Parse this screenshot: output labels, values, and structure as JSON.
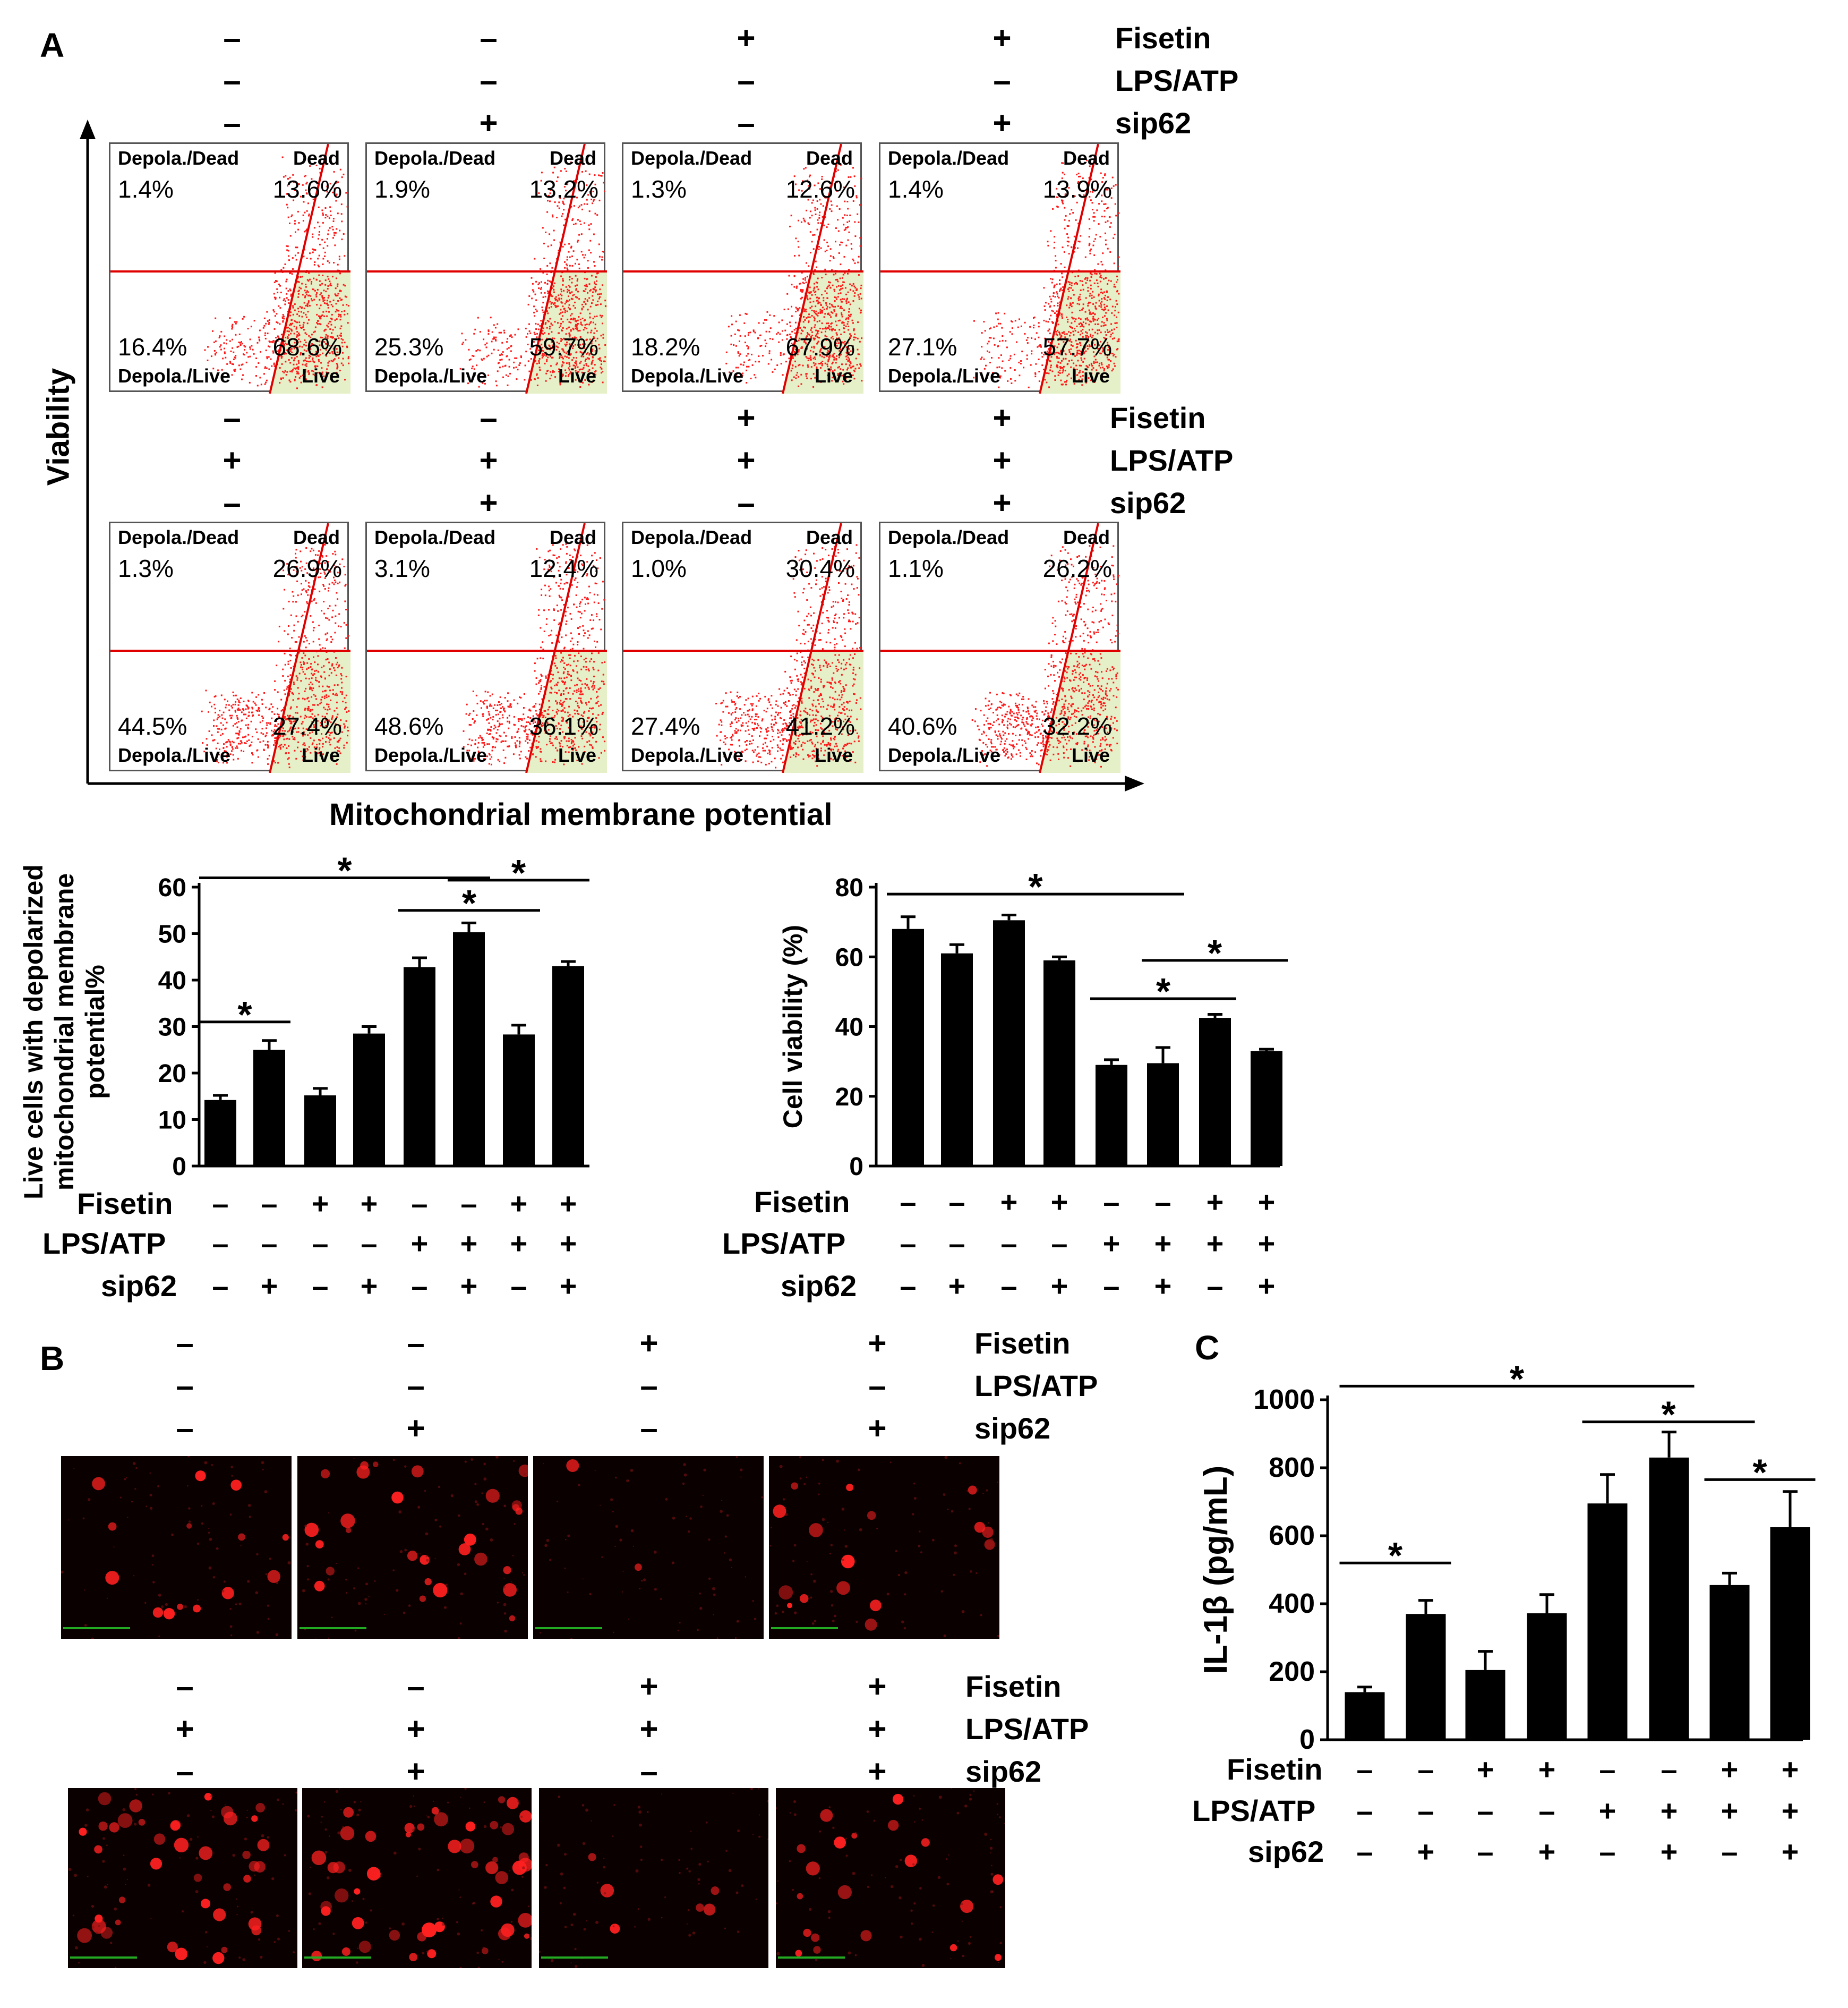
{
  "panel_letters": {
    "a": "A",
    "b": "B",
    "c": "C"
  },
  "condition_labels": [
    "Fisetin",
    "LPS/ATP",
    "sip62"
  ],
  "signs": {
    "plus": "+",
    "minus": "–"
  },
  "colors": {
    "gate": "#e00000",
    "dots": "#ff1a1a",
    "live_fill": "#e6f0c8",
    "bars": "#000000",
    "scalebar": "#22aa22"
  },
  "conditions": [
    {
      "fisetin": "–",
      "lps_atp": "–",
      "sip62": "–"
    },
    {
      "fisetin": "–",
      "lps_atp": "–",
      "sip62": "+"
    },
    {
      "fisetin": "+",
      "lps_atp": "–",
      "sip62": "–"
    },
    {
      "fisetin": "+",
      "lps_atp": "–",
      "sip62": "+"
    },
    {
      "fisetin": "–",
      "lps_atp": "+",
      "sip62": "–"
    },
    {
      "fisetin": "–",
      "lps_atp": "+",
      "sip62": "+"
    },
    {
      "fisetin": "+",
      "lps_atp": "+",
      "sip62": "–"
    },
    {
      "fisetin": "+",
      "lps_atp": "+",
      "sip62": "+"
    }
  ],
  "flow": {
    "y_axis_label": "Viability",
    "x_axis_label": "Mitochondrial membrane potential",
    "quadrant_labels": {
      "top_left": "Depola./Dead",
      "top_right": "Dead",
      "bottom_left": "Depola./Live",
      "bottom_right": "Live"
    },
    "plots": [
      {
        "tl": "1.4%",
        "tr": "13.6%",
        "bl": "16.4%",
        "br": "68.6%"
      },
      {
        "tl": "1.9%",
        "tr": "13.2%",
        "bl": "25.3%",
        "br": "59.7%"
      },
      {
        "tl": "1.3%",
        "tr": "12.6%",
        "bl": "18.2%",
        "br": "67.9%"
      },
      {
        "tl": "1.4%",
        "tr": "13.9%",
        "bl": "27.1%",
        "br": "57.7%"
      },
      {
        "tl": "1.3%",
        "tr": "26.9%",
        "bl": "44.5%",
        "br": "27.4%"
      },
      {
        "tl": "3.1%",
        "tr": "12.4%",
        "bl": "48.6%",
        "br": "36.1%"
      },
      {
        "tl": "1.0%",
        "tr": "30.4%",
        "bl": "27.4%",
        "br": "41.2%"
      },
      {
        "tl": "1.1%",
        "tr": "26.2%",
        "bl": "40.6%",
        "br": "32.2%"
      }
    ]
  },
  "chart_data": [
    {
      "id": "depolarized",
      "type": "bar",
      "title": "",
      "ylabel": "Live cells with depolarized mitochondrial membrane potential%",
      "ylabel_lines": [
        "Live cells with depolarized",
        "mitochondrial membrane",
        "potential%"
      ],
      "xlabel": "",
      "ylim": [
        0,
        60
      ],
      "yticks": [
        "0",
        "10",
        "20",
        "30",
        "40",
        "50",
        "60"
      ],
      "values": [
        14.2,
        25.0,
        15.2,
        28.5,
        42.8,
        50.3,
        28.3,
        43.0
      ],
      "errors": [
        1.0,
        2.0,
        1.5,
        1.5,
        2.0,
        2.0,
        2.0,
        1.0
      ],
      "significance": [
        {
          "from": 0,
          "to": 1,
          "level": 31,
          "label": "*"
        },
        {
          "from": 0,
          "to": 5,
          "level": 62,
          "label": "*"
        },
        {
          "from": 4,
          "to": 6,
          "level": 55,
          "label": "*"
        },
        {
          "from": 5,
          "to": 7,
          "level": 61.5,
          "label": "*"
        }
      ]
    },
    {
      "id": "viability",
      "type": "bar",
      "title": "",
      "ylabel": "Cell viability (%)",
      "xlabel": "",
      "ylim": [
        0,
        80
      ],
      "yticks": [
        "0",
        "20",
        "40",
        "60",
        "80"
      ],
      "values": [
        68.0,
        61.0,
        70.5,
        59.0,
        29.0,
        29.5,
        42.5,
        33.0
      ],
      "errors": [
        3.5,
        2.5,
        1.5,
        1.0,
        1.5,
        4.5,
        1.0,
        0.5
      ],
      "significance": [
        {
          "from": 0,
          "to": 5,
          "level": 78,
          "label": "*"
        },
        {
          "from": 4,
          "to": 6,
          "level": 48,
          "label": "*"
        },
        {
          "from": 5,
          "to": 7,
          "level": 59,
          "label": "*"
        }
      ]
    },
    {
      "id": "il1b",
      "type": "bar",
      "title": "",
      "ylabel": "IL-1β (pg/mL)",
      "xlabel": "",
      "ylim": [
        0,
        1000
      ],
      "yticks": [
        "0",
        "200",
        "400",
        "600",
        "800",
        "1000"
      ],
      "values": [
        140,
        370,
        205,
        372,
        695,
        830,
        455,
        625
      ],
      "errors": [
        15,
        40,
        55,
        55,
        85,
        75,
        35,
        105
      ],
      "significance": [
        {
          "from": 0,
          "to": 1,
          "level": 520,
          "label": "*"
        },
        {
          "from": 0,
          "to": 5,
          "level": 1040,
          "label": "*"
        },
        {
          "from": 4,
          "to": 6,
          "level": 935,
          "label": "*"
        },
        {
          "from": 6,
          "to": 7,
          "level": 765,
          "label": "*"
        }
      ]
    }
  ]
}
